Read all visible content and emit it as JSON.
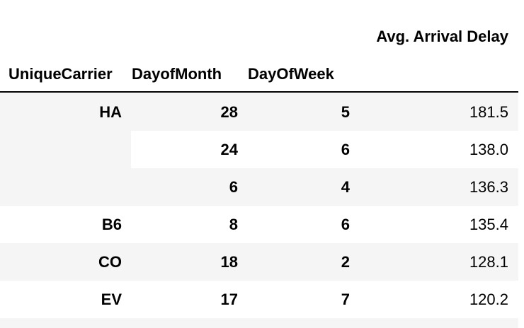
{
  "table": {
    "value_header": "Avg. Arrival Delay",
    "index_headers": [
      "UniqueCarrier",
      "DayofMonth",
      "DayOfWeek"
    ],
    "rows": [
      {
        "carrier": "HA",
        "day_of_month": "28",
        "day_of_week": "5",
        "avg_arrival_delay": "181.5"
      },
      {
        "carrier": "",
        "day_of_month": "24",
        "day_of_week": "6",
        "avg_arrival_delay": "138.0"
      },
      {
        "carrier": "",
        "day_of_month": "6",
        "day_of_week": "4",
        "avg_arrival_delay": "136.3"
      },
      {
        "carrier": "B6",
        "day_of_month": "8",
        "day_of_week": "6",
        "avg_arrival_delay": "135.4"
      },
      {
        "carrier": "CO",
        "day_of_month": "18",
        "day_of_week": "2",
        "avg_arrival_delay": "128.1"
      },
      {
        "carrier": "EV",
        "day_of_month": "17",
        "day_of_week": "7",
        "avg_arrival_delay": "120.2"
      }
    ]
  }
}
